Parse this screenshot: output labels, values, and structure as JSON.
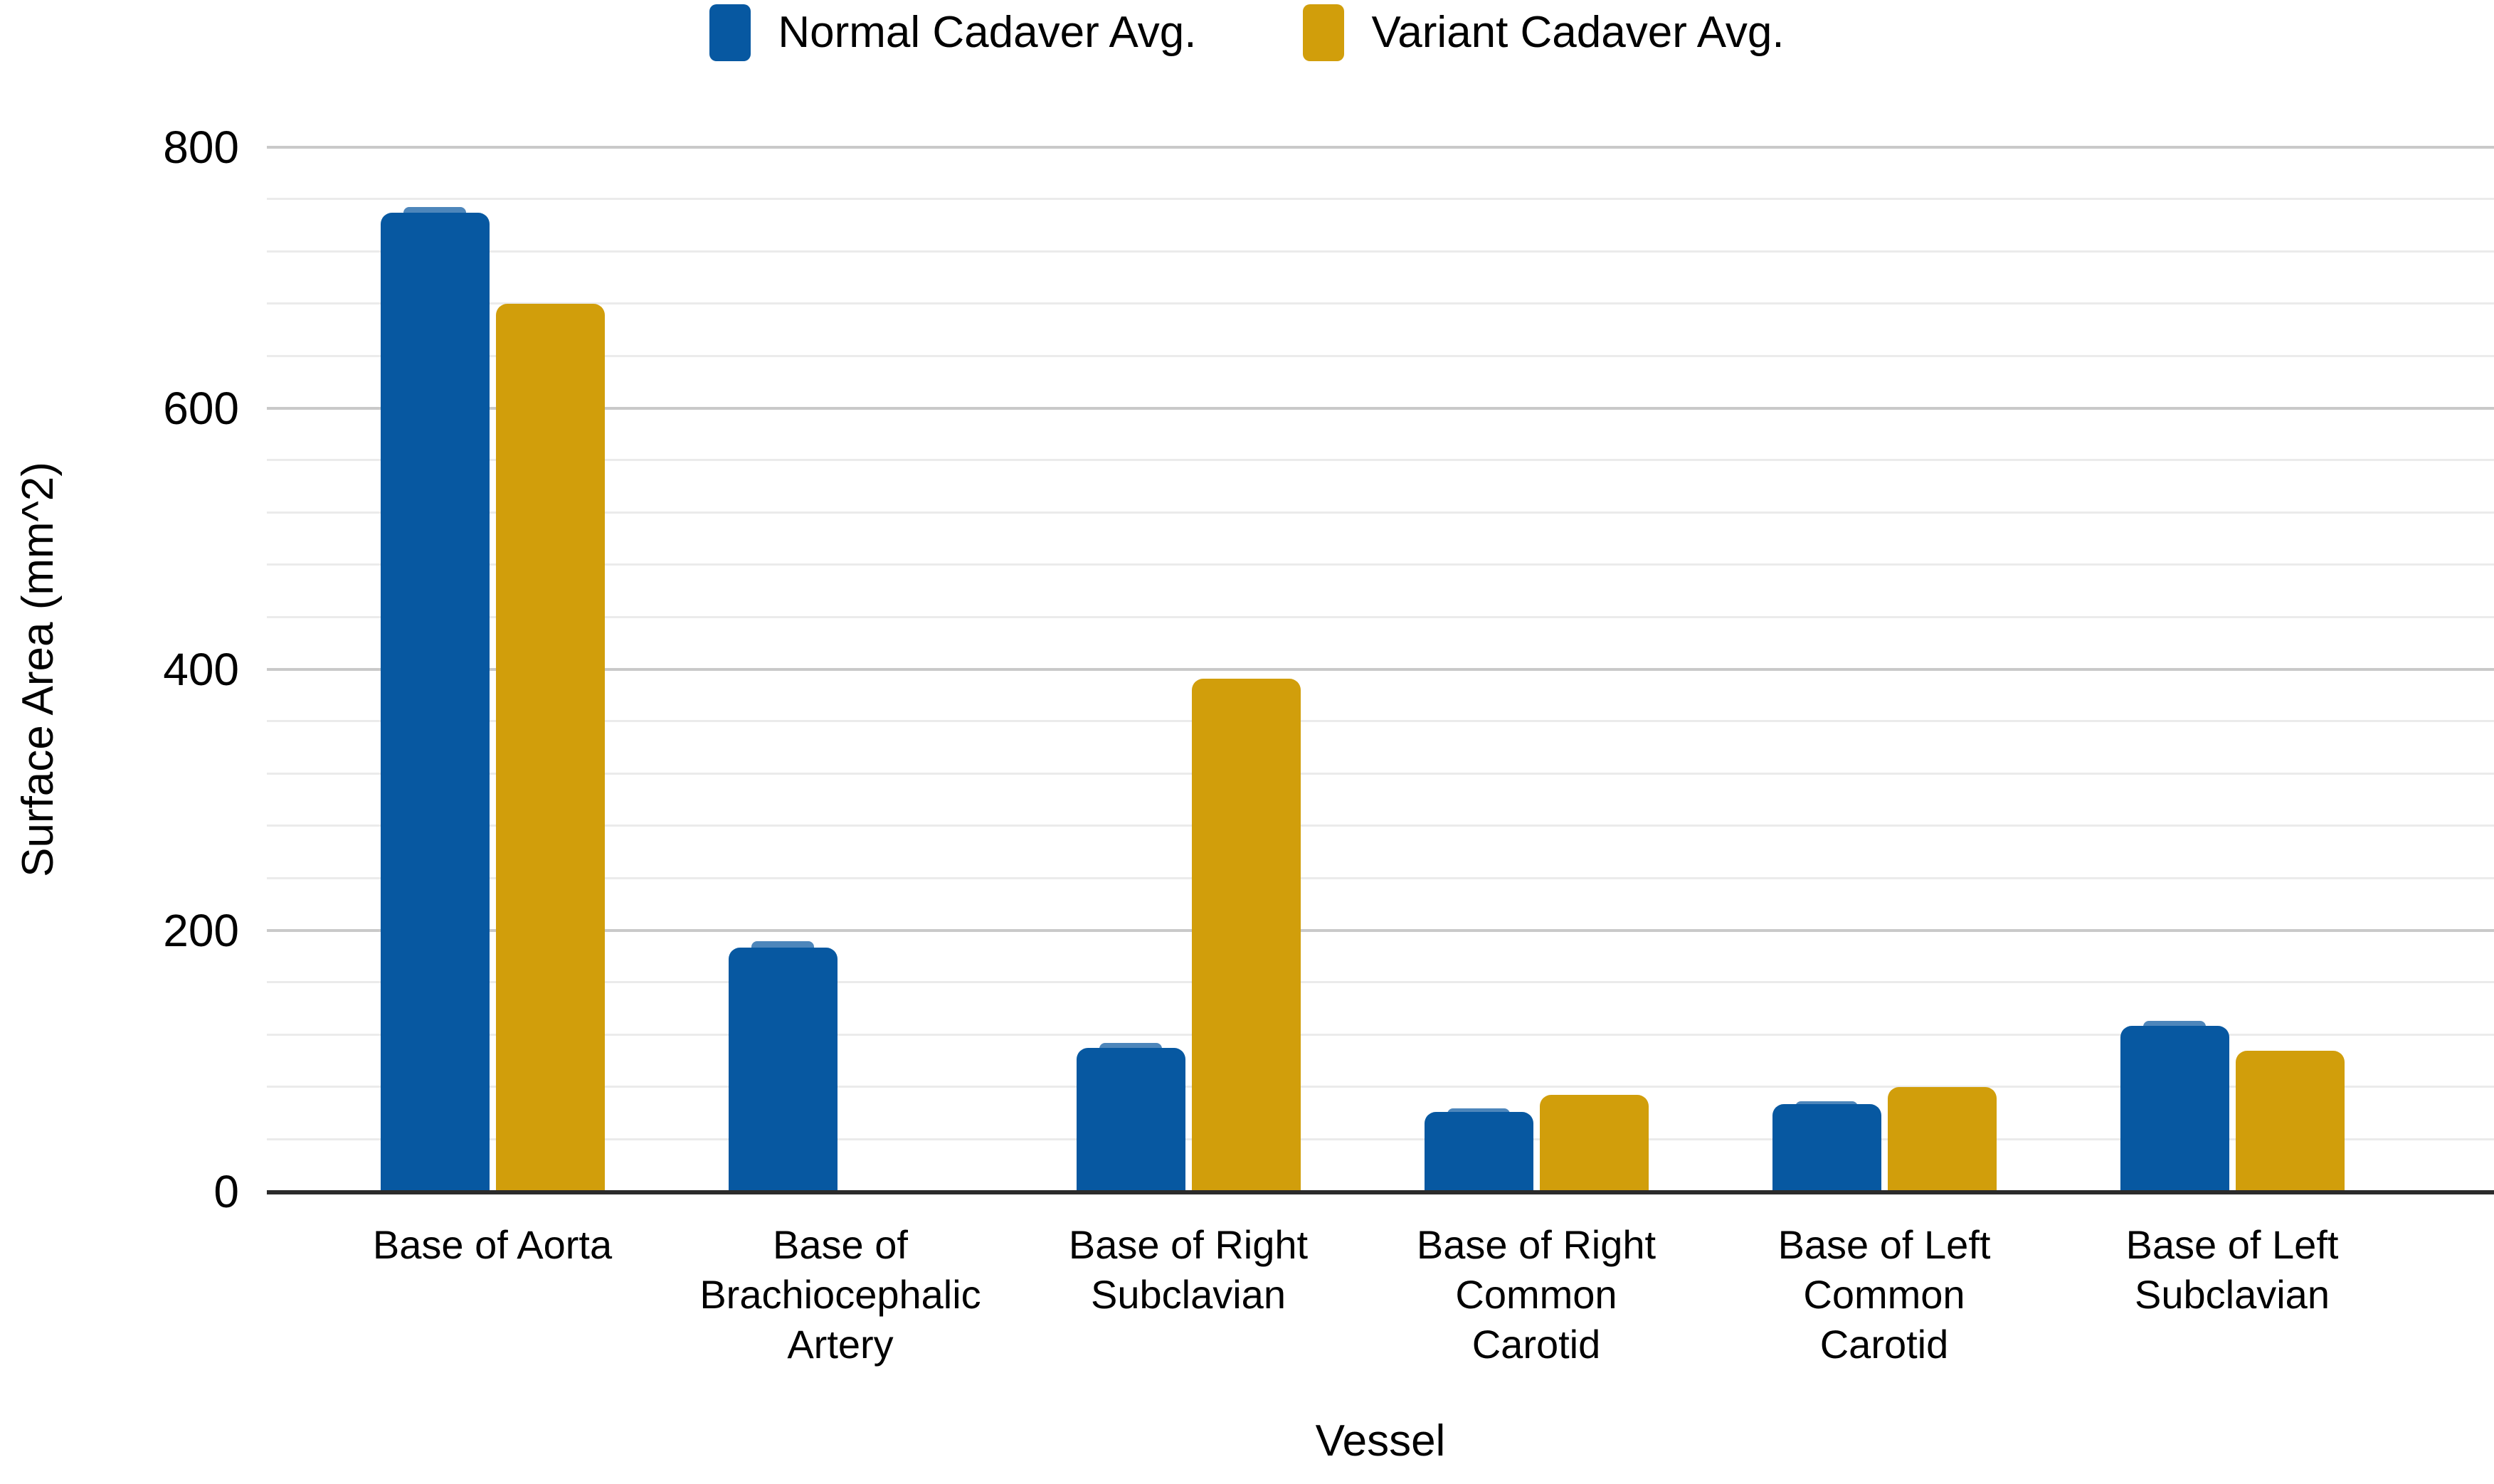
{
  "legend": [
    {
      "label": "Normal Cadaver Avg.",
      "color": "#0758a1"
    },
    {
      "label": "Variant Cadaver Avg.",
      "color": "#d19e0b"
    }
  ],
  "axes": {
    "x_title": "Vessel",
    "y_title": "Surface Area (mm^2)"
  },
  "chart_data": {
    "type": "bar",
    "title": "",
    "xlabel": "Vessel",
    "ylabel": "Surface Area (mm^2)",
    "ylim": [
      0,
      800
    ],
    "ytick_step": 200,
    "grid_minor_step": 40,
    "grid": true,
    "legend_position": "top",
    "categories": [
      "Base of Aorta",
      "Base of\nBrachiocephalic\nArtery",
      "Base of Right\nSubclavian",
      "Base of Right\nCommon\nCarotid",
      "Base of Left\nCommon\nCarotid",
      "Base of Left\nSubclavian"
    ],
    "series": [
      {
        "name": "Normal Cadaver Avg.",
        "color": "#0758a1",
        "error_cap_color": "#4d86bb",
        "values": [
          750,
          187,
          110,
          61,
          67,
          127
        ],
        "error_caps_visible": [
          4,
          5,
          4,
          3,
          2,
          4
        ]
      },
      {
        "name": "Variant Cadaver Avg.",
        "color": "#d19e0b",
        "values": [
          680,
          null,
          393,
          74,
          80,
          108
        ],
        "error_caps_visible": [
          0,
          0,
          0,
          0,
          0,
          0
        ]
      }
    ],
    "colors": {
      "axis_line": "#2b2b2b",
      "major_gridline": "#c9c9c9",
      "minor_gridline": "#ebebeb",
      "background": "#ffffff",
      "text": "#000000"
    }
  }
}
